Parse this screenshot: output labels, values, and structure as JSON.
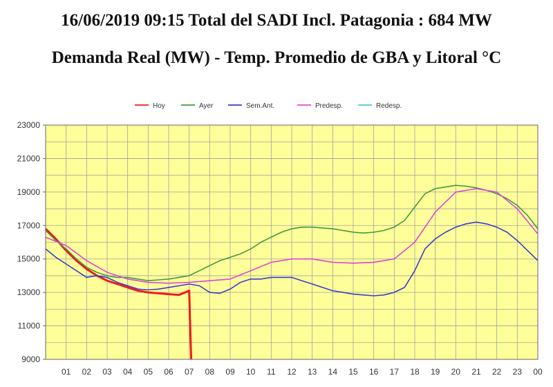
{
  "header": {
    "line1": "16/06/2019 09:15 Total del SADI Incl. Patagonia : 684 MW",
    "line2": "Demanda Real (MW) - Temp. Promedio de GBA y Litoral °C"
  },
  "colors": {
    "plot_bg": "#ffff99",
    "grid": "#a0a0a0",
    "hoy": "#ee1c1c",
    "ayer": "#3f9a3f",
    "sem_ant": "#3a3ad0",
    "predesp": "#dd44dd",
    "redesp": "#44cccc"
  },
  "chart_data": {
    "type": "line",
    "title": "Demanda Real (MW) - Temp. Promedio de GBA y Litoral °C",
    "xlabel": "",
    "ylabel": "",
    "xlim": [
      0,
      24
    ],
    "ylim": [
      9000,
      23000
    ],
    "y_ticks": [
      "23000",
      "21000",
      "19000",
      "17000",
      "15000",
      "13000",
      "11000",
      "9000"
    ],
    "y_tick_values": [
      23000,
      21000,
      19000,
      17000,
      15000,
      13000,
      11000,
      9000
    ],
    "x_ticks": [
      "01",
      "02",
      "03",
      "04",
      "05",
      "06",
      "07",
      "08",
      "09",
      "10",
      "11",
      "12",
      "13",
      "14",
      "15",
      "16",
      "17",
      "18",
      "19",
      "20",
      "21",
      "22",
      "23",
      "00"
    ],
    "legend": [
      {
        "key": "hoy",
        "label": "Hoy"
      },
      {
        "key": "ayer",
        "label": "Ayer"
      },
      {
        "key": "sem_ant",
        "label": "Sem.Ant."
      },
      {
        "key": "predesp",
        "label": "Predesp."
      },
      {
        "key": "redesp",
        "label": "Redesp."
      }
    ],
    "series": [
      {
        "key": "hoy",
        "name": "Hoy",
        "x": [
          0,
          0.5,
          1,
          1.5,
          2,
          2.5,
          3,
          3.5,
          4,
          4.5,
          5,
          5.5,
          6,
          6.5,
          7,
          7.05,
          7.1
        ],
        "y": [
          16800,
          16200,
          15500,
          14900,
          14400,
          14000,
          13700,
          13500,
          13300,
          13100,
          13000,
          12950,
          12900,
          12850,
          13100,
          11000,
          9000
        ]
      },
      {
        "key": "ayer",
        "name": "Ayer",
        "x": [
          0,
          0.5,
          1,
          1.5,
          2,
          2.5,
          3,
          3.5,
          4,
          4.5,
          5,
          5.5,
          6,
          6.5,
          7,
          7.5,
          8,
          8.5,
          9,
          9.5,
          10,
          10.5,
          11,
          11.5,
          12,
          12.5,
          13,
          13.5,
          14,
          14.5,
          15,
          15.5,
          16,
          16.5,
          17,
          17.5,
          18,
          18.5,
          19,
          19.5,
          20,
          20.5,
          21,
          21.5,
          22,
          22.5,
          23,
          23.5,
          24
        ],
        "y": [
          16700,
          16100,
          15600,
          15000,
          14500,
          14200,
          14000,
          13900,
          13900,
          13800,
          13700,
          13750,
          13800,
          13900,
          14000,
          14300,
          14600,
          14900,
          15100,
          15300,
          15600,
          16000,
          16300,
          16600,
          16800,
          16900,
          16900,
          16850,
          16800,
          16700,
          16600,
          16550,
          16600,
          16700,
          16900,
          17300,
          18100,
          18900,
          19200,
          19300,
          19400,
          19350,
          19250,
          19100,
          18900,
          18600,
          18200,
          17600,
          16800
        ]
      },
      {
        "key": "sem_ant",
        "name": "Sem.Ant.",
        "x": [
          0,
          0.5,
          1,
          1.5,
          2,
          2.5,
          3,
          3.5,
          4,
          4.5,
          5,
          5.5,
          6,
          6.5,
          7,
          7.5,
          8,
          8.5,
          9,
          9.5,
          10,
          10.5,
          11,
          11.5,
          12,
          12.5,
          13,
          13.5,
          14,
          14.5,
          15,
          15.5,
          16,
          16.5,
          17,
          17.5,
          18,
          18.5,
          19,
          19.5,
          20,
          20.5,
          21,
          21.5,
          22,
          22.5,
          23,
          23.5,
          24
        ],
        "y": [
          15600,
          15100,
          14700,
          14300,
          13900,
          14000,
          13900,
          13600,
          13400,
          13200,
          13150,
          13200,
          13300,
          13400,
          13500,
          13400,
          13000,
          12950,
          13200,
          13600,
          13800,
          13800,
          13900,
          13900,
          13900,
          13700,
          13500,
          13300,
          13100,
          13000,
          12900,
          12850,
          12800,
          12850,
          13000,
          13300,
          14300,
          15600,
          16200,
          16600,
          16900,
          17100,
          17200,
          17100,
          16900,
          16600,
          16100,
          15500,
          14900
        ]
      },
      {
        "key": "predesp",
        "name": "Predesp.",
        "x": [
          0,
          1,
          2,
          3,
          4,
          5,
          6,
          7,
          8,
          9,
          10,
          11,
          12,
          13,
          14,
          15,
          16,
          17,
          18,
          19,
          20,
          21,
          22,
          23,
          24
        ],
        "y": [
          16300,
          15800,
          14900,
          14200,
          13800,
          13600,
          13550,
          13600,
          13700,
          13800,
          14300,
          14800,
          15000,
          15000,
          14800,
          14750,
          14800,
          15000,
          16000,
          17800,
          19000,
          19200,
          19000,
          18000,
          16500
        ]
      },
      {
        "key": "redesp",
        "name": "Redesp.",
        "x": [],
        "y": []
      }
    ]
  }
}
